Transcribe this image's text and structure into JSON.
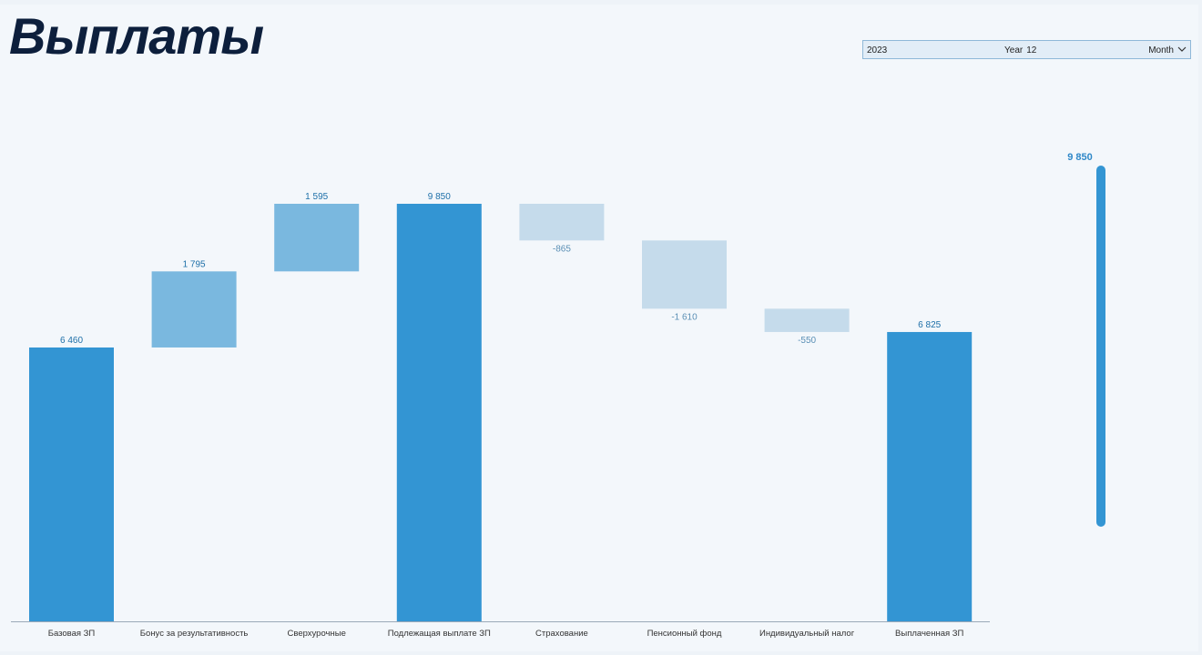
{
  "page": {
    "title": "Выплаты"
  },
  "slicer": {
    "year": "2023",
    "level_label": "Year",
    "level_value": "12",
    "granularity": "Month",
    "dropdown_icon": "chevron-down-icon"
  },
  "kpi": {
    "value_label": "9 850",
    "color": "#3395d3"
  },
  "colors": {
    "total": "#3395d3",
    "increase": "#7ab8df",
    "decrease": "#c5dbeb",
    "label_total": "#1d6fa8",
    "label_decrease": "#5a8fb5",
    "axis": "#9aa9b8"
  },
  "chart_data": {
    "type": "bar",
    "subtype": "waterfall",
    "categories": [
      "Базовая ЗП",
      "Бонус за результативность",
      "Сверхурочные",
      "Подлежащая выплате ЗП",
      "Страхование",
      "Пенсионный фонд",
      "Индивидуальный налог",
      "Выплаченная ЗП"
    ],
    "values": [
      6460,
      1795,
      1595,
      9850,
      -865,
      -1610,
      -550,
      6825
    ],
    "kinds": [
      "total",
      "increase",
      "increase",
      "total",
      "decrease",
      "decrease",
      "decrease",
      "total"
    ],
    "data_labels": [
      "6 460",
      "1 795",
      "1 595",
      "9 850",
      "-865",
      "-1 610",
      "-550",
      "6 825"
    ],
    "ylim": [
      0,
      10500
    ],
    "grid": false,
    "legend": "none"
  }
}
